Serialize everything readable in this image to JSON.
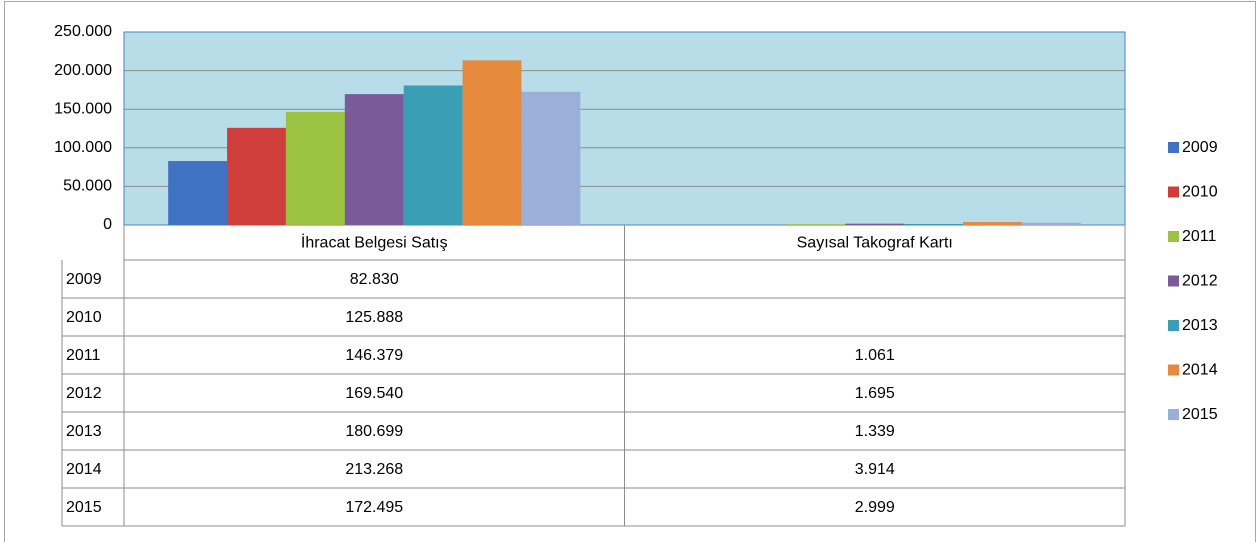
{
  "chart_data": {
    "type": "bar",
    "categories": [
      "İhracat Belgesi Satış",
      "Sayısal Takograf Kartı"
    ],
    "series": [
      {
        "name": "2009",
        "color": "#3f72c0",
        "values": [
          82830,
          null
        ],
        "value_labels": [
          "82.830",
          null
        ]
      },
      {
        "name": "2010",
        "color": "#cf3e3a",
        "values": [
          125888,
          null
        ],
        "value_labels": [
          "125.888",
          null
        ]
      },
      {
        "name": "2011",
        "color": "#9bc240",
        "values": [
          146379,
          1061
        ],
        "value_labels": [
          "146.379",
          "1.061"
        ]
      },
      {
        "name": "2012",
        "color": "#7a5a98",
        "values": [
          169540,
          1695
        ],
        "value_labels": [
          "169.540",
          "1.695"
        ]
      },
      {
        "name": "2013",
        "color": "#3a9fb4",
        "values": [
          180699,
          1339
        ],
        "value_labels": [
          "180.699",
          "1.339"
        ]
      },
      {
        "name": "2014",
        "color": "#e58a3c",
        "values": [
          213268,
          3914
        ],
        "value_labels": [
          "213.268",
          "3.914"
        ]
      },
      {
        "name": "2015",
        "color": "#9cafd8",
        "values": [
          172495,
          2999
        ],
        "value_labels": [
          "172.495",
          "2.999"
        ]
      }
    ],
    "ylim": [
      0,
      250000
    ],
    "yticks": [
      0,
      {
        "value": 50000,
        "label": "50.000"
      },
      {
        "value": 100000,
        "label": "100.000"
      },
      {
        "value": 150000,
        "label": "150.000"
      },
      {
        "value": 200000,
        "label": "200.000"
      },
      {
        "value": 250000,
        "label": "250.000"
      }
    ],
    "grid": true,
    "legend": "right",
    "plot_background": "#b7dde8"
  }
}
